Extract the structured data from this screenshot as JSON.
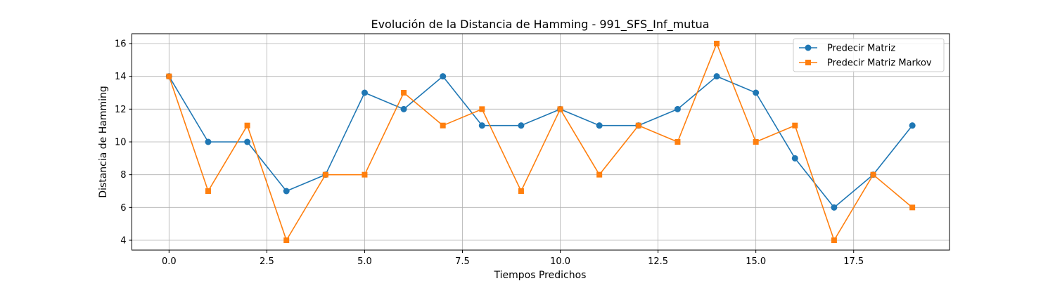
{
  "chart_data": {
    "type": "line",
    "title": "Evolución de la Distancia de Hamming - 991_SFS_Inf_mutua",
    "xlabel": "Tiempos Predichos",
    "ylabel": "Distancia de Hamming",
    "x": [
      0,
      1,
      2,
      3,
      4,
      5,
      6,
      7,
      8,
      9,
      10,
      11,
      12,
      13,
      14,
      15,
      16,
      17,
      18,
      19
    ],
    "xlim": [
      -0.95,
      19.95
    ],
    "ylim": [
      3.4,
      16.6
    ],
    "xticks": [
      0.0,
      2.5,
      5.0,
      7.5,
      10.0,
      12.5,
      15.0,
      17.5
    ],
    "xtick_labels": [
      "0.0",
      "2.5",
      "5.0",
      "7.5",
      "10.0",
      "12.5",
      "15.0",
      "17.5"
    ],
    "yticks": [
      4,
      6,
      8,
      10,
      12,
      14,
      16
    ],
    "ytick_labels": [
      "4",
      "6",
      "8",
      "10",
      "12",
      "14",
      "16"
    ],
    "grid": true,
    "legend_position": "top-right",
    "series": [
      {
        "name": "Predecir Matriz",
        "color": "#1f77b4",
        "marker": "circle",
        "values": [
          14,
          10,
          10,
          7,
          8,
          13,
          12,
          14,
          11,
          11,
          12,
          11,
          11,
          12,
          14,
          13,
          9,
          6,
          8,
          11
        ]
      },
      {
        "name": "Predecir Matriz Markov",
        "color": "#ff7f0e",
        "marker": "square",
        "values": [
          14,
          7,
          11,
          4,
          8,
          8,
          13,
          11,
          12,
          7,
          12,
          8,
          11,
          10,
          16,
          10,
          11,
          4,
          8,
          6
        ]
      }
    ]
  }
}
